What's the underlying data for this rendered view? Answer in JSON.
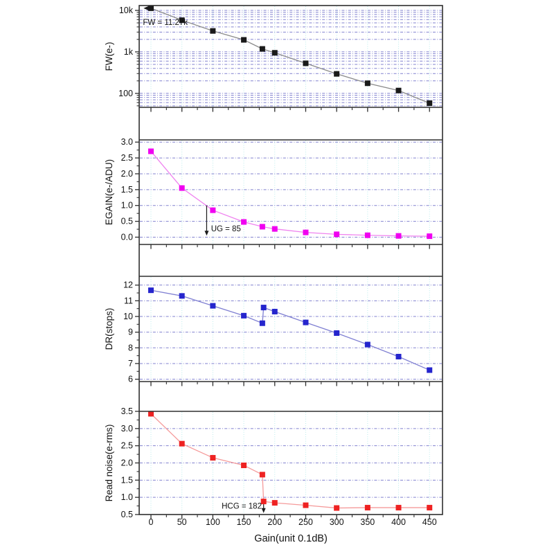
{
  "chart_data": {
    "type": "line",
    "title": "",
    "xlabel": "Gain(unit 0.1dB)",
    "xlim": [
      -19,
      471
    ],
    "x_major_ticks": [
      0,
      50,
      100,
      150,
      200,
      250,
      300,
      350,
      400,
      450
    ],
    "x_minor_ticks": [
      25,
      75,
      125,
      175,
      225,
      275,
      325,
      375,
      425
    ],
    "grid": "on",
    "legend": "none",
    "colors": {
      "vertical_grid": "#b9ecec",
      "horizontal_grid": "#8080cf",
      "axis": "#2e2e2e",
      "text": "#111111"
    },
    "panels": [
      {
        "id": "fw",
        "ylabel": "FW(e-)",
        "yscale": "log",
        "ylim": [
          46,
          13100
        ],
        "y_major_ticks": [
          {
            "v": 10000,
            "label": "10k"
          },
          {
            "v": 1000,
            "label": "1k"
          },
          {
            "v": 100,
            "label": "100"
          }
        ],
        "y_minor_ticks": [
          9000,
          8000,
          7000,
          6000,
          5000,
          4000,
          3000,
          2000,
          900,
          800,
          700,
          600,
          500,
          400,
          300,
          200,
          90,
          80,
          70,
          60,
          50
        ],
        "grid_at_minor": true,
        "marker_color": "#1a1a1a",
        "line_color": "#8a8a8a",
        "x": [
          0,
          50,
          100,
          150,
          180,
          200,
          250,
          300,
          350,
          400,
          450
        ],
        "y": [
          11270,
          5800,
          3200,
          1950,
          1180,
          950,
          530,
          295,
          175,
          117,
          58
        ],
        "annotations": [
          {
            "text": "FW = 11.27k",
            "x": -13,
            "v": 4500,
            "anchor": "start"
          }
        ],
        "arrows": [
          {
            "dir": "left",
            "x1": 2,
            "x2": -12,
            "v": 11270
          }
        ]
      },
      {
        "id": "egain",
        "ylabel": "EGAIN(e-/ADU)",
        "yscale": "linear",
        "ylim": [
          -0.23,
          3.07
        ],
        "y_major_ticks": [
          {
            "v": 3.0,
            "label": "3.0"
          },
          {
            "v": 2.5,
            "label": "2.5"
          },
          {
            "v": 2.0,
            "label": "2.0"
          },
          {
            "v": 1.5,
            "label": "1.5"
          },
          {
            "v": 1.0,
            "label": "1.0"
          },
          {
            "v": 0.5,
            "label": "0.5"
          },
          {
            "v": 0.0,
            "label": "0.0"
          }
        ],
        "y_minor_ticks": [
          2.75,
          2.25,
          1.75,
          1.25,
          0.75,
          0.25
        ],
        "grid_at_minor": false,
        "marker_color": "#f000f0",
        "line_color": "#ef82ef",
        "x": [
          0,
          50,
          100,
          150,
          180,
          200,
          250,
          300,
          350,
          400,
          450
        ],
        "y": [
          2.71,
          1.55,
          0.85,
          0.48,
          0.33,
          0.26,
          0.15,
          0.09,
          0.06,
          0.04,
          0.03
        ],
        "annotations": [
          {
            "text": "UG = 85",
            "x": 97,
            "v": 0.18,
            "anchor": "start"
          }
        ],
        "arrows": [
          {
            "dir": "down",
            "x": 90,
            "v1": 1.0,
            "v2": 0.05
          }
        ]
      },
      {
        "id": "dr",
        "ylabel": "DR(stops)",
        "yscale": "linear",
        "ylim": [
          5.85,
          12.56
        ],
        "y_major_ticks": [
          {
            "v": 12,
            "label": "12"
          },
          {
            "v": 11,
            "label": "11"
          },
          {
            "v": 10,
            "label": "10"
          },
          {
            "v": 9,
            "label": "9"
          },
          {
            "v": 8,
            "label": "8"
          },
          {
            "v": 7,
            "label": "7"
          },
          {
            "v": 6,
            "label": "6"
          }
        ],
        "y_minor_ticks": [
          11.5,
          10.5,
          9.5,
          8.5,
          7.5,
          6.5
        ],
        "grid_at_minor": false,
        "marker_color": "#2525cd",
        "line_color": "#7f7fd2",
        "x": [
          0,
          50,
          100,
          150,
          180,
          182,
          200,
          250,
          300,
          350,
          400,
          450
        ],
        "y": [
          11.67,
          11.31,
          10.68,
          10.05,
          9.57,
          10.57,
          10.31,
          9.62,
          8.94,
          8.21,
          7.44,
          6.58
        ],
        "annotations": [],
        "arrows": []
      },
      {
        "id": "read-noise",
        "ylabel": "Read noise(e-rms)",
        "yscale": "linear",
        "ylim": [
          0.5,
          3.5
        ],
        "y_major_ticks": [
          {
            "v": 3.5,
            "label": "3.5"
          },
          {
            "v": 3.0,
            "label": "3.0"
          },
          {
            "v": 2.5,
            "label": "2.5"
          },
          {
            "v": 2.0,
            "label": "2.0"
          },
          {
            "v": 1.5,
            "label": "1.5"
          },
          {
            "v": 1.0,
            "label": "1.0"
          },
          {
            "v": 0.5,
            "label": "0.5"
          }
        ],
        "y_minor_ticks": [
          3.25,
          2.75,
          2.25,
          1.75,
          1.25,
          0.75
        ],
        "grid_at_minor": false,
        "marker_color": "#ee2222",
        "line_color": "#f59a9a",
        "x": [
          0,
          50,
          100,
          150,
          180,
          182,
          200,
          250,
          300,
          350,
          400,
          450
        ],
        "y": [
          3.43,
          2.56,
          2.15,
          1.93,
          1.66,
          0.88,
          0.84,
          0.77,
          0.69,
          0.7,
          0.7,
          0.7
        ],
        "annotations": [
          {
            "text": "HCG = 182",
            "x": 179,
            "v": 0.67,
            "anchor": "end"
          }
        ],
        "arrows": [
          {
            "dir": "down",
            "x": 182,
            "v1": 0.8,
            "v2": 0.545
          }
        ]
      }
    ]
  }
}
